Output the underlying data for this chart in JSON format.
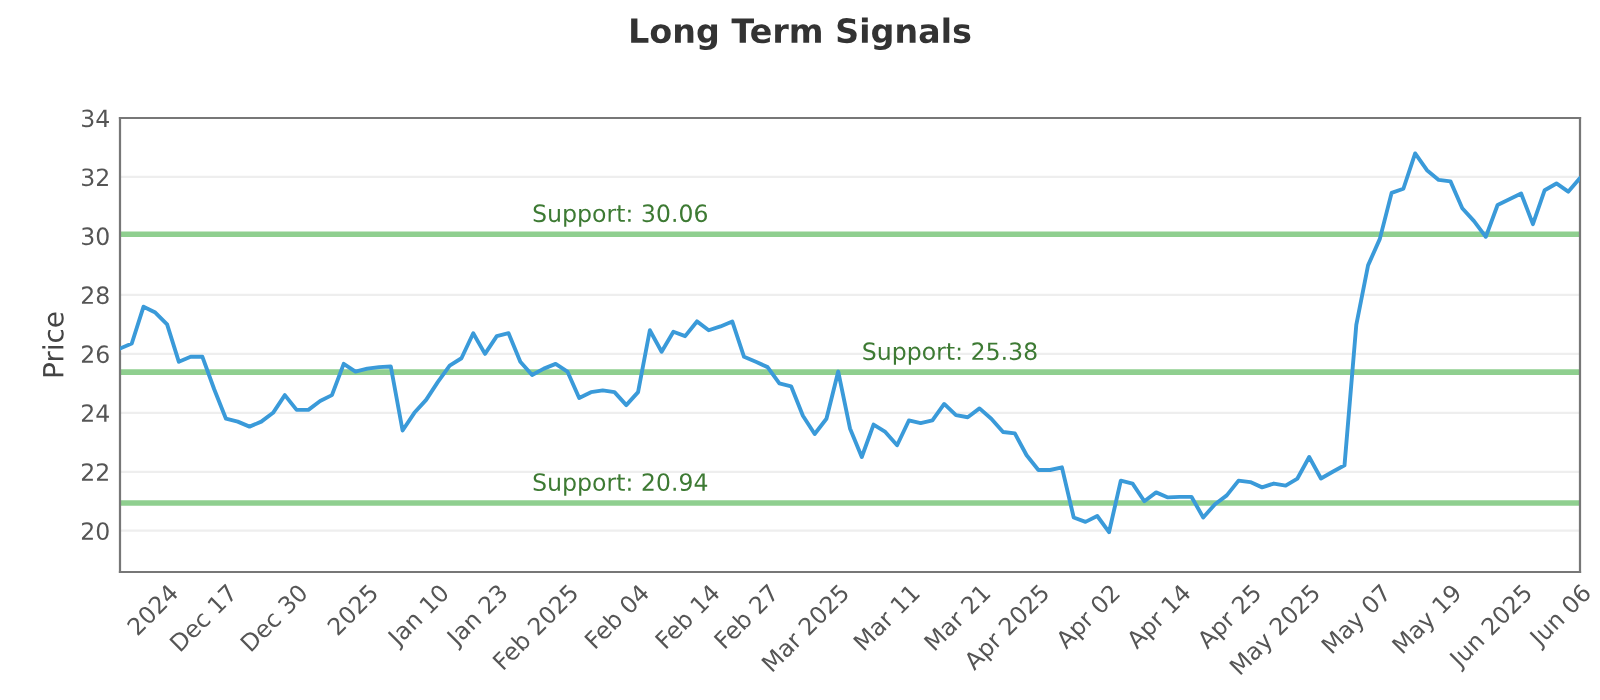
{
  "chart_data": {
    "type": "line",
    "title": "Long Term Signals",
    "ylabel": "Price",
    "categories": [
      null,
      null,
      null,
      null,
      "2024",
      null,
      null,
      null,
      null,
      "Dec 17",
      null,
      null,
      null,
      null,
      null,
      "Dec 30",
      null,
      null,
      null,
      null,
      null,
      "2025",
      null,
      null,
      null,
      null,
      null,
      "Jan 10",
      null,
      null,
      null,
      null,
      "Jan 23",
      null,
      null,
      null,
      null,
      null,
      "Feb 2025",
      null,
      null,
      null,
      null,
      null,
      "Feb 04",
      null,
      null,
      null,
      null,
      null,
      "Feb 14",
      null,
      null,
      null,
      null,
      "Feb 27",
      null,
      null,
      null,
      null,
      null,
      "Mar 2025",
      null,
      null,
      null,
      null,
      null,
      "Mar 11",
      null,
      null,
      null,
      null,
      null,
      "Mar 21",
      null,
      null,
      null,
      null,
      "Apr 2025",
      null,
      null,
      null,
      null,
      null,
      "Apr 02",
      null,
      null,
      null,
      null,
      null,
      "Apr 14",
      null,
      null,
      null,
      null,
      null,
      "Apr 25",
      null,
      null,
      null,
      null,
      "May 2025",
      null,
      null,
      null,
      null,
      null,
      "May 07",
      null,
      null,
      null,
      null,
      null,
      "May 19",
      null,
      null,
      null,
      null,
      null,
      "Jun 2025",
      null,
      null,
      null,
      null,
      "Jun 06"
    ],
    "series": [
      {
        "color": "#3a9ad9",
        "values": [
          26.18,
          26.35,
          27.6,
          27.4,
          27.0,
          25.73,
          25.9,
          25.9,
          24.8,
          23.8,
          23.7,
          23.53,
          23.7,
          24.0,
          24.6,
          24.1,
          24.1,
          24.4,
          24.6,
          25.66,
          25.4,
          25.5,
          25.55,
          25.57,
          23.4,
          24.0,
          24.44,
          25.05,
          25.6,
          25.85,
          26.7,
          26.0,
          26.6,
          26.7,
          25.73,
          25.28,
          25.5,
          25.66,
          25.4,
          24.5,
          24.7,
          24.76,
          24.7,
          24.26,
          24.7,
          26.8,
          26.07,
          26.75,
          26.6,
          27.1,
          26.8,
          26.93,
          27.1,
          25.9,
          25.73,
          25.55,
          25.0,
          24.9,
          23.9,
          23.28,
          23.8,
          25.4,
          23.47,
          22.5,
          23.6,
          23.35,
          22.9,
          23.74,
          23.65,
          23.74,
          24.3,
          23.92,
          23.85,
          24.15,
          23.8,
          23.35,
          23.3,
          22.56,
          22.06,
          22.06,
          22.15,
          20.45,
          20.3,
          20.5,
          19.95,
          21.7,
          21.6,
          21.0,
          21.3,
          21.13,
          21.15,
          21.15,
          20.45,
          20.9,
          21.2,
          21.7,
          21.65,
          21.47,
          21.6,
          21.53,
          21.77,
          22.5,
          21.77,
          22.0,
          22.22,
          26.98,
          29.0,
          29.9,
          31.46,
          31.6,
          32.8,
          32.23,
          31.9,
          31.85,
          30.94,
          30.5,
          29.97,
          31.05,
          31.24,
          31.44,
          30.4,
          31.55,
          31.78,
          31.5,
          31.96
        ]
      }
    ],
    "ylim": [
      18.6,
      34
    ],
    "yticks": [
      20,
      22,
      24,
      26,
      28,
      30,
      32,
      34
    ],
    "grid": "y",
    "legend": false,
    "ref_lines": [
      {
        "axis": "y",
        "value": 30.06,
        "label": "Support: 30.06",
        "color": "#8fcf8f"
      },
      {
        "axis": "y",
        "value": 25.38,
        "label": "Support: 25.38",
        "color": "#8fcf8f"
      },
      {
        "axis": "y",
        "value": 20.94,
        "label": "Support: 20.94",
        "color": "#8fcf8f"
      }
    ]
  }
}
